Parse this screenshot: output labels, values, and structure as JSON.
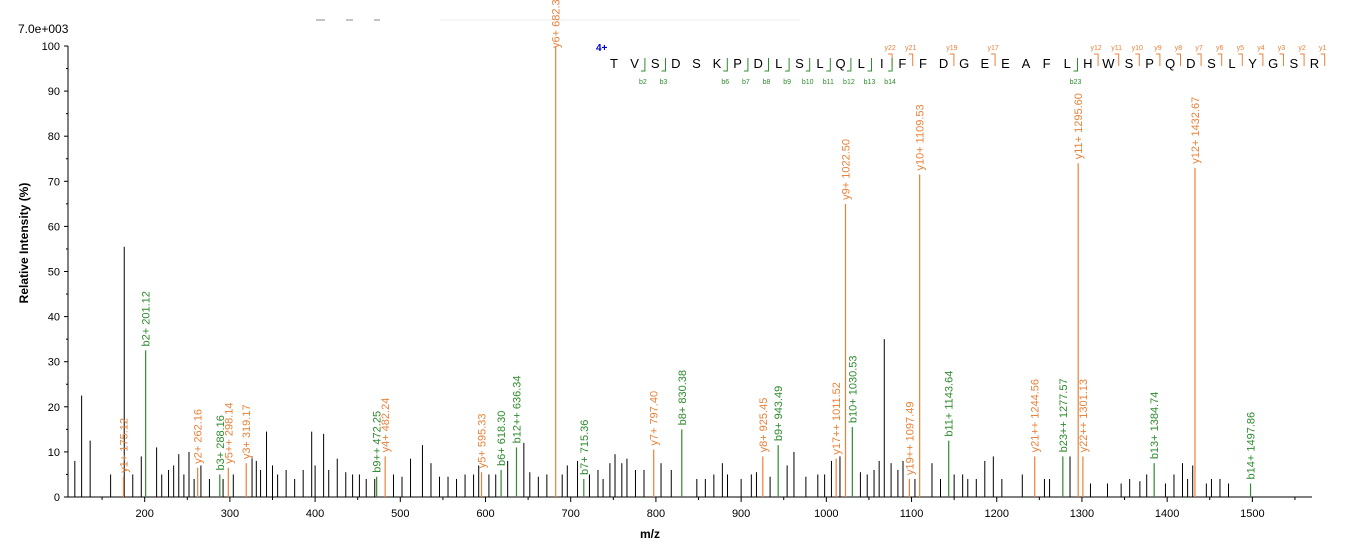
{
  "chart_data": {
    "type": "bar",
    "xlabel": "m/z",
    "ylabel": "Relative   Intensity (%)",
    "scale_label": "7.0e+003",
    "xlim": [
      110,
      1570
    ],
    "ylim": [
      0,
      100
    ],
    "x_ticks": [
      200,
      300,
      400,
      500,
      600,
      700,
      800,
      900,
      1000,
      1100,
      1200,
      1300,
      1400,
      1500
    ],
    "y_ticks": [
      0,
      10,
      20,
      30,
      40,
      50,
      60,
      70,
      80,
      90,
      100
    ],
    "colors": {
      "y_ion": "#e8823a",
      "b_ion": "#2e8b2e",
      "unassigned": "#000000",
      "charge": "#0000cc"
    },
    "annotated_peaks": [
      {
        "label": "y1+ 175.12",
        "x": 175.12,
        "y": 4.5,
        "ion": "y"
      },
      {
        "label": "b2+ 201.12",
        "x": 201.12,
        "y": 32.5,
        "ion": "b"
      },
      {
        "label": "y2+ 262.16",
        "x": 262.16,
        "y": 6.5,
        "ion": "y"
      },
      {
        "label": "b3+ 288.16",
        "x": 288.16,
        "y": 5,
        "ion": "b"
      },
      {
        "label": "y5++ 298.14",
        "x": 298.14,
        "y": 6.5,
        "ion": "y"
      },
      {
        "label": "y3+ 319.17",
        "x": 319.17,
        "y": 7.5,
        "ion": "y"
      },
      {
        "label": "b9++ 472.25",
        "x": 472.25,
        "y": 4.5,
        "ion": "b"
      },
      {
        "label": "y4+ 482.24",
        "x": 482.24,
        "y": 9,
        "ion": "y"
      },
      {
        "label": "y5+ 595.33",
        "x": 595.33,
        "y": 5.5,
        "ion": "y"
      },
      {
        "label": "b6+ 618.30",
        "x": 618.3,
        "y": 6,
        "ion": "b"
      },
      {
        "label": "b12++ 636.34",
        "x": 636.34,
        "y": 11,
        "ion": "b"
      },
      {
        "label": "y6+ 682.36",
        "x": 682.36,
        "y": 100,
        "ion": "y"
      },
      {
        "label": "b7+ 715.36",
        "x": 715.36,
        "y": 4,
        "ion": "b"
      },
      {
        "label": "y7+ 797.40",
        "x": 797.4,
        "y": 10.5,
        "ion": "y"
      },
      {
        "label": "b8+ 830.38",
        "x": 830.38,
        "y": 15,
        "ion": "b"
      },
      {
        "label": "y8+ 925.45",
        "x": 925.45,
        "y": 9,
        "ion": "y"
      },
      {
        "label": "b9+ 943.49",
        "x": 943.49,
        "y": 11.5,
        "ion": "b"
      },
      {
        "label": "y17++ 1011.52",
        "x": 1011.52,
        "y": 8.5,
        "ion": "y"
      },
      {
        "label": "y9+ 1022.50",
        "x": 1022.5,
        "y": 65,
        "ion": "y"
      },
      {
        "label": "b10+ 1030.53",
        "x": 1030.53,
        "y": 15.5,
        "ion": "b"
      },
      {
        "label": "y19++ 1097.49",
        "x": 1097.49,
        "y": 4,
        "ion": "y"
      },
      {
        "label": "y10+ 1109.53",
        "x": 1109.53,
        "y": 71.5,
        "ion": "y"
      },
      {
        "label": "b11+ 1143.64",
        "x": 1143.64,
        "y": 12.5,
        "ion": "b"
      },
      {
        "label": "y21++ 1244.56",
        "x": 1244.56,
        "y": 9,
        "ion": "y"
      },
      {
        "label": "b23++ 1277.57",
        "x": 1277.57,
        "y": 9,
        "ion": "b"
      },
      {
        "label": "y11+ 1295.60",
        "x": 1295.6,
        "y": 74,
        "ion": "y"
      },
      {
        "label": "y22++ 1301.13",
        "x": 1301.13,
        "y": 9,
        "ion": "y"
      },
      {
        "label": "b13+ 1384.74",
        "x": 1384.74,
        "y": 7.5,
        "ion": "b"
      },
      {
        "label": "y12+ 1432.67",
        "x": 1432.67,
        "y": 73,
        "ion": "y"
      },
      {
        "label": "b14+ 1497.86",
        "x": 1497.86,
        "y": 3,
        "ion": "b"
      }
    ],
    "unassigned_peaks": [
      [
        118,
        8
      ],
      [
        126,
        22.5
      ],
      [
        136,
        12.5
      ],
      [
        160,
        5
      ],
      [
        176,
        55.5
      ],
      [
        186,
        5
      ],
      [
        196,
        9
      ],
      [
        214,
        11
      ],
      [
        220,
        5
      ],
      [
        228,
        6
      ],
      [
        234,
        7
      ],
      [
        240,
        9.5
      ],
      [
        246,
        5
      ],
      [
        252,
        10
      ],
      [
        258,
        4
      ],
      [
        266,
        7
      ],
      [
        276,
        4
      ],
      [
        292,
        4
      ],
      [
        304,
        5
      ],
      [
        326,
        9
      ],
      [
        331,
        8
      ],
      [
        336,
        6
      ],
      [
        343,
        14.5
      ],
      [
        350,
        7
      ],
      [
        356,
        5
      ],
      [
        366,
        6
      ],
      [
        376,
        4
      ],
      [
        386,
        6
      ],
      [
        396,
        14.5
      ],
      [
        400,
        7
      ],
      [
        410,
        14
      ],
      [
        416,
        6
      ],
      [
        426,
        8.5
      ],
      [
        436,
        5.5
      ],
      [
        444,
        5
      ],
      [
        452,
        5
      ],
      [
        460,
        4
      ],
      [
        470,
        4
      ],
      [
        492,
        5
      ],
      [
        502,
        4.5
      ],
      [
        512,
        8.5
      ],
      [
        526,
        11.5
      ],
      [
        536,
        7.5
      ],
      [
        546,
        4.5
      ],
      [
        556,
        4.5
      ],
      [
        566,
        4
      ],
      [
        576,
        5
      ],
      [
        586,
        5
      ],
      [
        592,
        7
      ],
      [
        604,
        5
      ],
      [
        612,
        5
      ],
      [
        626,
        8
      ],
      [
        645,
        12
      ],
      [
        652,
        5.5
      ],
      [
        662,
        4.5
      ],
      [
        672,
        5
      ],
      [
        690,
        5
      ],
      [
        696,
        7
      ],
      [
        708,
        8
      ],
      [
        722,
        5
      ],
      [
        732,
        6
      ],
      [
        738,
        4
      ],
      [
        746,
        7.5
      ],
      [
        752,
        9.5
      ],
      [
        760,
        7.5
      ],
      [
        766,
        8.5
      ],
      [
        776,
        6
      ],
      [
        786,
        6
      ],
      [
        806,
        7.5
      ],
      [
        818,
        6
      ],
      [
        848,
        4
      ],
      [
        858,
        4
      ],
      [
        868,
        5
      ],
      [
        878,
        7.5
      ],
      [
        884,
        5
      ],
      [
        900,
        4
      ],
      [
        912,
        5
      ],
      [
        918,
        5.5
      ],
      [
        934,
        4.5
      ],
      [
        954,
        7
      ],
      [
        962,
        10
      ],
      [
        976,
        4.5
      ],
      [
        990,
        5
      ],
      [
        998,
        5
      ],
      [
        1006,
        8
      ],
      [
        1016,
        9
      ],
      [
        1040,
        5.5
      ],
      [
        1048,
        5
      ],
      [
        1056,
        6
      ],
      [
        1062,
        8
      ],
      [
        1068,
        35
      ],
      [
        1076,
        7.5
      ],
      [
        1084,
        6
      ],
      [
        1090,
        8
      ],
      [
        1104,
        4
      ],
      [
        1124,
        7.5
      ],
      [
        1134,
        4
      ],
      [
        1150,
        5
      ],
      [
        1160,
        5
      ],
      [
        1166,
        4
      ],
      [
        1176,
        4
      ],
      [
        1186,
        8
      ],
      [
        1196,
        9
      ],
      [
        1206,
        4
      ],
      [
        1230,
        5
      ],
      [
        1256,
        4
      ],
      [
        1262,
        4
      ],
      [
        1286,
        9
      ],
      [
        1310,
        3
      ],
      [
        1330,
        3
      ],
      [
        1346,
        3
      ],
      [
        1356,
        4
      ],
      [
        1368,
        3.5
      ],
      [
        1376,
        5
      ],
      [
        1398,
        3
      ],
      [
        1408,
        5
      ],
      [
        1418,
        7.5
      ],
      [
        1424,
        4
      ],
      [
        1430,
        7
      ],
      [
        1446,
        3
      ],
      [
        1452,
        4
      ],
      [
        1462,
        4
      ],
      [
        1472,
        3
      ]
    ],
    "sequence": {
      "charge": "4+",
      "residues": [
        "T",
        "V",
        "S",
        "D",
        "S",
        "K",
        "P",
        "D",
        "L",
        "S",
        "L",
        "Q",
        "L",
        "I",
        "F",
        "F",
        "D",
        "G",
        "E",
        "E",
        "A",
        "F",
        "L",
        "H",
        "W",
        "S",
        "P",
        "Q",
        "D",
        "S",
        "L",
        "Y",
        "G",
        "S",
        "R"
      ],
      "y_markers": [
        {
          "text": "y22",
          "pos": 13.5
        },
        {
          "text": "y21",
          "pos": 14.5
        },
        {
          "text": "y19",
          "pos": 16.5
        },
        {
          "text": "y17",
          "pos": 18.5
        },
        {
          "text": "y12",
          "pos": 23.5
        },
        {
          "text": "y11",
          "pos": 24.5
        },
        {
          "text": "y10",
          "pos": 25.5
        },
        {
          "text": "y9",
          "pos": 26.5
        },
        {
          "text": "y8",
          "pos": 27.5
        },
        {
          "text": "y7",
          "pos": 28.5
        },
        {
          "text": "y6",
          "pos": 29.5
        },
        {
          "text": "y5",
          "pos": 30.5
        },
        {
          "text": "y4",
          "pos": 31.5
        },
        {
          "text": "y3",
          "pos": 32.5
        },
        {
          "text": "y2",
          "pos": 33.5
        },
        {
          "text": "y1",
          "pos": 34.5
        }
      ],
      "b_markers": [
        {
          "text": "b2",
          "pos": 1.5
        },
        {
          "text": "b3",
          "pos": 2.5
        },
        {
          "text": "b6",
          "pos": 5.5
        },
        {
          "text": "b7",
          "pos": 6.5
        },
        {
          "text": "b8",
          "pos": 7.5
        },
        {
          "text": "b9",
          "pos": 8.5
        },
        {
          "text": "b10",
          "pos": 9.5
        },
        {
          "text": "b11",
          "pos": 10.5
        },
        {
          "text": "b12",
          "pos": 11.5
        },
        {
          "text": "b13",
          "pos": 12.5
        },
        {
          "text": "b14",
          "pos": 13.5
        },
        {
          "text": "b23",
          "pos": 22.5
        }
      ]
    }
  }
}
